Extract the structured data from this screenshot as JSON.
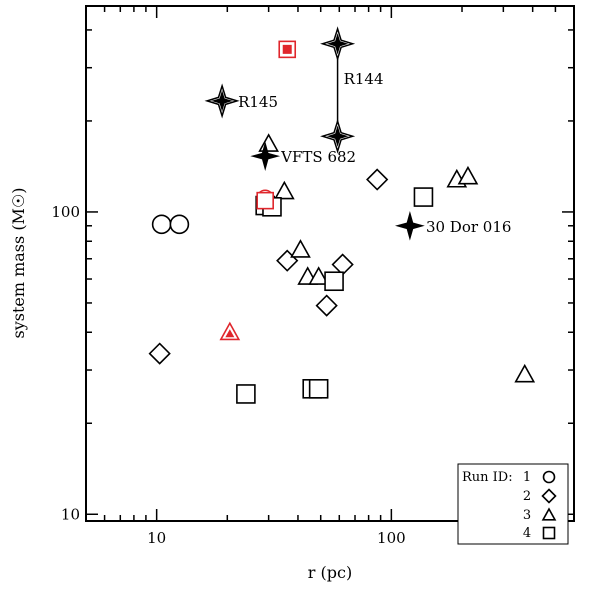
{
  "chart_data": {
    "type": "scatter",
    "xlabel": "r (pc)",
    "ylabel": "system mass (M☉)",
    "xscale": "log",
    "yscale": "log",
    "xlim": [
      5,
      600
    ],
    "ylim": [
      9.5,
      480
    ],
    "x_ticks": [
      10,
      100
    ],
    "x_tick_labels": [
      "10",
      "100"
    ],
    "y_ticks": [
      10,
      100
    ],
    "y_tick_labels": [
      "10",
      "100"
    ],
    "legend": {
      "placement": "bottom-right",
      "title": "Run ID:",
      "entries": [
        {
          "label": "1",
          "marker": "circle"
        },
        {
          "label": "2",
          "marker": "diamond"
        },
        {
          "label": "3",
          "marker": "triangle"
        },
        {
          "label": "4",
          "marker": "square"
        }
      ]
    },
    "series": [
      {
        "name": "1",
        "marker": "circle",
        "points": [
          {
            "x": 10.5,
            "y": 91
          },
          {
            "x": 12.5,
            "y": 91
          }
        ]
      },
      {
        "name": "2",
        "marker": "diamond",
        "points": [
          {
            "x": 10.3,
            "y": 34
          },
          {
            "x": 36,
            "y": 69
          },
          {
            "x": 53,
            "y": 49
          },
          {
            "x": 62,
            "y": 67
          },
          {
            "x": 87,
            "y": 128
          }
        ]
      },
      {
        "name": "3",
        "marker": "triangle",
        "points": [
          {
            "x": 30,
            "y": 168
          },
          {
            "x": 35,
            "y": 117
          },
          {
            "x": 41,
            "y": 75
          },
          {
            "x": 44,
            "y": 61
          },
          {
            "x": 49,
            "y": 61
          },
          {
            "x": 190,
            "y": 128
          },
          {
            "x": 212,
            "y": 131
          },
          {
            "x": 370,
            "y": 29
          }
        ]
      },
      {
        "name": "4",
        "marker": "square",
        "points": [
          {
            "x": 24,
            "y": 25
          },
          {
            "x": 29,
            "y": 105
          },
          {
            "x": 31,
            "y": 104
          },
          {
            "x": 46,
            "y": 26
          },
          {
            "x": 49,
            "y": 26
          },
          {
            "x": 57,
            "y": 59
          },
          {
            "x": 137,
            "y": 112
          }
        ]
      }
    ],
    "highlighted": [
      {
        "x": 36,
        "y": 345,
        "marker": "square",
        "color": "#e0262c",
        "filled_center": true
      },
      {
        "x": 29,
        "y": 111,
        "marker": "circle",
        "color": "#e0262c",
        "filled_center": true
      },
      {
        "x": 29,
        "y": 109,
        "marker": "square",
        "color": "#e0262c",
        "filled_center": false
      },
      {
        "x": 20.5,
        "y": 40,
        "marker": "triangle",
        "color": "#e0262c",
        "filled_center": true
      }
    ],
    "named_stars": [
      {
        "label": "R145",
        "x": 19,
        "y": 233,
        "style": "open-star"
      },
      {
        "label": "VFTS 682",
        "x": 29,
        "y": 153,
        "style": "filled-star"
      },
      {
        "label": "30 Dor 016",
        "x": 120,
        "y": 90,
        "style": "filled-star"
      }
    ],
    "r144": {
      "label": "R144",
      "x": 59,
      "y_top": 360,
      "y_bottom": 178,
      "style": "open-star"
    },
    "colors": {
      "axis": "#000000",
      "highlight": "#e0262c",
      "marker_fill": "#ffffff"
    }
  }
}
